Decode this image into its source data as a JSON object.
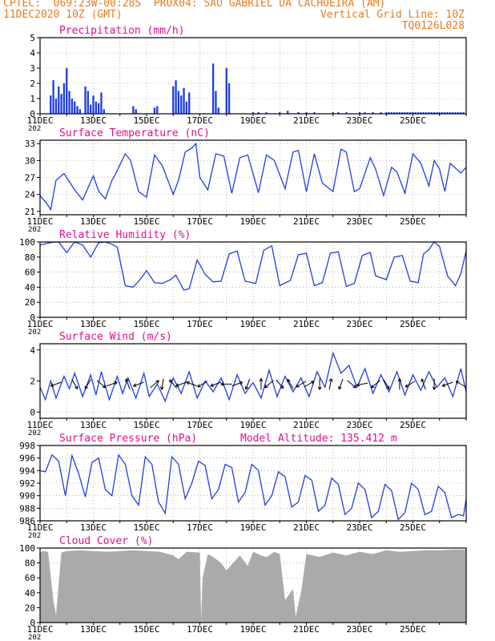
{
  "header": {
    "line1_left": "CPTEC:  069:23W-00:28S  PROX04: SAO GABRIEL DA CACHOEIRA (AM)",
    "line2_left": "11DEC2020 10Z (GMT)",
    "line2_right": "Vertical Grid Line: 10Z",
    "line3_right": "TQ0126L028"
  },
  "colors": {
    "header": "#e87a1e",
    "title": "#e0108c",
    "line": "#1f3fe0",
    "bars": "#1f3fe0",
    "cloud": "#aaaaaa"
  },
  "x_dates": [
    "11DEC",
    "13DEC",
    "15DEC",
    "17DEC",
    "19DEC",
    "21DEC",
    "23DEC",
    "25DEC"
  ],
  "x_cut_label": "202",
  "chart_data": [
    {
      "id": "precip",
      "type": "bar",
      "title": "Precipitation (mm/h)",
      "ylim": [
        0,
        5
      ],
      "yticks": [
        0,
        1,
        2,
        3,
        4,
        5
      ],
      "grid": true,
      "x_unit": "days since 11DEC2020 00Z",
      "x": [
        0.4,
        0.5,
        0.6,
        0.7,
        0.8,
        0.9,
        1.0,
        1.1,
        1.2,
        1.3,
        1.4,
        1.5,
        1.7,
        1.8,
        1.9,
        2.0,
        2.1,
        2.2,
        2.3,
        2.4,
        3.5,
        3.6,
        4.3,
        4.4,
        5.0,
        5.1,
        5.2,
        5.3,
        5.4,
        5.5,
        5.6,
        6.5,
        6.6,
        6.7,
        7.0,
        7.1,
        8.0,
        8.2,
        8.5,
        9.0,
        9.3,
        9.7,
        10.0,
        10.3,
        11.0,
        11.2,
        11.5,
        12.0,
        12.2,
        12.5,
        12.8,
        13.0,
        13.1,
        13.2,
        13.3,
        13.4,
        13.5,
        13.6,
        13.7,
        13.8,
        13.9,
        14.0,
        14.1,
        14.2,
        14.3,
        14.4,
        14.5,
        14.6,
        14.7,
        14.8,
        14.9,
        15.0,
        15.1,
        15.2,
        15.3,
        15.4,
        15.5,
        15.6,
        15.7,
        15.8,
        15.9
      ],
      "values": [
        1.2,
        2.2,
        1.0,
        1.8,
        1.3,
        2.0,
        3.0,
        1.5,
        1.0,
        0.8,
        0.5,
        0.3,
        1.8,
        1.5,
        0.6,
        1.2,
        0.8,
        0.7,
        1.4,
        0.3,
        0.5,
        0.3,
        0.4,
        0.5,
        1.8,
        2.2,
        1.5,
        1.2,
        1.7,
        0.8,
        1.4,
        3.3,
        1.5,
        0.4,
        3.0,
        2.0,
        0.1,
        0.1,
        0.1,
        0.1,
        0.2,
        0.1,
        0.1,
        0.1,
        0.1,
        0.1,
        0.1,
        0.1,
        0.1,
        0.1,
        0.1,
        0.1,
        0.1,
        0.1,
        0.1,
        0.1,
        0.1,
        0.1,
        0.1,
        0.1,
        0.1,
        0.1,
        0.1,
        0.1,
        0.1,
        0.1,
        0.1,
        0.1,
        0.1,
        0.1,
        0.1,
        0.1,
        0.1,
        0.1,
        0.1,
        0.1,
        0.1,
        0.1,
        0.1,
        0.1,
        0.1
      ]
    },
    {
      "id": "temp",
      "type": "line",
      "title": "Surface Temperature (nC)",
      "ylim": [
        20.4,
        33.6
      ],
      "yticks": [
        21,
        24,
        27,
        30,
        33
      ],
      "grid": true,
      "x_unit": "days since 11DEC2020 00Z",
      "x": [
        0.0,
        0.25,
        0.4,
        0.6,
        0.9,
        1.3,
        1.6,
        2.0,
        2.2,
        2.45,
        2.7,
        2.8,
        3.2,
        3.4,
        3.7,
        4.0,
        4.3,
        4.6,
        5.0,
        5.2,
        5.45,
        5.7,
        5.85,
        6.0,
        6.3,
        6.6,
        6.9,
        7.2,
        7.5,
        7.8,
        8.2,
        8.5,
        8.8,
        9.2,
        9.5,
        9.7,
        10.0,
        10.3,
        10.6,
        11.0,
        11.3,
        11.5,
        11.8,
        12.0,
        12.4,
        12.6,
        12.9,
        13.2,
        13.4,
        13.7,
        14.0,
        14.3,
        14.6,
        14.8,
        15.0,
        15.2,
        15.4,
        15.8,
        16.0
      ],
      "values": [
        23.8,
        22.4,
        21.3,
        26.5,
        27.7,
        24.8,
        23.0,
        27.3,
        24.6,
        23.2,
        26.5,
        27.3,
        31.2,
        30.0,
        24.5,
        23.5,
        31.0,
        29.0,
        24.0,
        26.5,
        31.5,
        32.2,
        33.0,
        27.0,
        24.8,
        31.2,
        30.8,
        24.2,
        30.5,
        31.0,
        24.3,
        31.0,
        30.0,
        25.0,
        31.5,
        31.8,
        24.5,
        31.2,
        26.0,
        24.5,
        32.0,
        31.5,
        24.5,
        25.0,
        30.5,
        28.5,
        23.8,
        28.8,
        28.0,
        24.2,
        31.2,
        29.5,
        25.5,
        30.0,
        28.5,
        24.5,
        29.5,
        27.8,
        28.8
      ]
    },
    {
      "id": "rh",
      "type": "line",
      "title": "Relative Humidity (%)",
      "ylim": [
        0,
        100
      ],
      "yticks": [
        0,
        20,
        40,
        60,
        80,
        100
      ],
      "grid": true,
      "x_unit": "days since 11DEC2020 00Z",
      "x": [
        0.0,
        0.25,
        0.5,
        0.7,
        1.0,
        1.3,
        1.6,
        1.9,
        2.2,
        2.45,
        2.7,
        2.9,
        3.2,
        3.5,
        3.8,
        4.0,
        4.3,
        4.6,
        4.9,
        5.1,
        5.4,
        5.6,
        5.9,
        6.2,
        6.5,
        6.8,
        7.1,
        7.4,
        7.7,
        8.1,
        8.4,
        8.7,
        9.0,
        9.4,
        9.7,
        10.0,
        10.3,
        10.6,
        10.9,
        11.2,
        11.5,
        11.8,
        12.1,
        12.4,
        12.6,
        13.0,
        13.3,
        13.6,
        13.9,
        14.2,
        14.4,
        14.6,
        14.8,
        15.0,
        15.3,
        15.6,
        15.8,
        16.0
      ],
      "values": [
        96,
        98,
        100,
        100,
        86,
        100,
        96,
        80,
        99,
        100,
        97,
        93,
        42,
        40,
        52,
        62,
        46,
        45,
        50,
        56,
        36,
        38,
        76,
        57,
        47,
        48,
        84,
        88,
        48,
        45,
        89,
        95,
        42,
        49,
        83,
        85,
        42,
        46,
        85,
        87,
        41,
        45,
        82,
        86,
        55,
        50,
        80,
        82,
        48,
        46,
        84,
        90,
        100,
        94,
        55,
        42,
        58,
        88
      ]
    },
    {
      "id": "wind",
      "type": "line",
      "title": "Surface Wind (m/s)",
      "ylim": [
        -0.4,
        4.4
      ],
      "yticks": [
        0,
        2,
        4
      ],
      "grid": true,
      "x_unit": "days since 11DEC2020 00Z",
      "x": [
        0.0,
        0.2,
        0.4,
        0.6,
        0.9,
        1.1,
        1.3,
        1.6,
        1.9,
        2.1,
        2.3,
        2.6,
        2.9,
        3.1,
        3.3,
        3.6,
        3.9,
        4.1,
        4.4,
        4.7,
        5.0,
        5.3,
        5.6,
        5.9,
        6.2,
        6.5,
        6.8,
        7.1,
        7.4,
        7.7,
        8.0,
        8.3,
        8.6,
        8.9,
        9.2,
        9.5,
        9.8,
        10.1,
        10.4,
        10.7,
        11.0,
        11.3,
        11.6,
        11.9,
        12.2,
        12.5,
        12.8,
        13.1,
        13.4,
        13.7,
        14.0,
        14.3,
        14.6,
        14.9,
        15.2,
        15.5,
        15.8,
        16.0
      ],
      "values": [
        1.6,
        0.8,
        2.0,
        0.9,
        2.3,
        1.5,
        2.5,
        1.0,
        2.4,
        1.1,
        2.6,
        0.8,
        2.3,
        1.2,
        2.2,
        0.9,
        2.5,
        1.0,
        1.8,
        0.7,
        2.2,
        1.2,
        2.6,
        0.9,
        2.0,
        1.3,
        2.2,
        0.8,
        2.4,
        1.2,
        1.9,
        0.9,
        2.7,
        1.0,
        2.3,
        1.3,
        2.2,
        1.0,
        2.6,
        1.6,
        3.8,
        2.5,
        3.0,
        1.6,
        2.8,
        1.2,
        2.4,
        1.3,
        2.6,
        1.1,
        2.4,
        1.4,
        2.6,
        1.6,
        2.2,
        1.0,
        2.8,
        1.3
      ],
      "arrows_at_x": [
        0.6,
        1.3,
        1.8,
        2.3,
        2.7,
        3.3,
        3.7,
        4.3,
        4.6,
        5.0,
        5.3,
        5.7,
        6.1,
        6.6,
        7.0,
        7.4,
        7.8,
        8.3,
        8.6,
        9.0,
        9.4,
        9.8,
        10.1,
        10.5,
        10.9,
        11.3,
        11.7,
        12.1,
        12.6,
        13.0,
        13.5,
        13.9,
        14.4,
        14.8,
        15.3,
        15.8
      ],
      "arrow_angles_deg": [
        200,
        300,
        240,
        320,
        20,
        110,
        200,
        40,
        260,
        130,
        200,
        160,
        210,
        200,
        180,
        20,
        250,
        90,
        220,
        310,
        120,
        210,
        30,
        270,
        80,
        250,
        320,
        190,
        220,
        300,
        90,
        210,
        110,
        270,
        200,
        150
      ]
    },
    {
      "id": "press",
      "type": "line",
      "title": "Surface Pressure (hPa)",
      "annotation": "Model Altitude: 135.412 m",
      "ylim": [
        986,
        998
      ],
      "yticks": [
        986,
        988,
        990,
        992,
        994,
        996,
        998
      ],
      "grid": true,
      "x_unit": "days since 11DEC2020 00Z",
      "x": [
        0.0,
        0.2,
        0.45,
        0.7,
        0.95,
        1.2,
        1.45,
        1.7,
        1.95,
        2.2,
        2.45,
        2.7,
        2.95,
        3.2,
        3.45,
        3.7,
        3.95,
        4.2,
        4.45,
        4.7,
        4.95,
        5.2,
        5.45,
        5.7,
        5.95,
        6.2,
        6.45,
        6.7,
        6.95,
        7.2,
        7.45,
        7.7,
        7.95,
        8.2,
        8.45,
        8.7,
        8.95,
        9.2,
        9.45,
        9.7,
        9.95,
        10.2,
        10.45,
        10.7,
        10.95,
        11.2,
        11.45,
        11.7,
        11.95,
        12.2,
        12.45,
        12.7,
        12.95,
        13.2,
        13.45,
        13.7,
        13.95,
        14.2,
        14.45,
        14.7,
        14.95,
        15.2,
        15.45,
        15.7,
        15.9,
        16.0
      ],
      "values": [
        994,
        993.8,
        996.5,
        995.5,
        990,
        996.4,
        993.5,
        989.8,
        995.3,
        996,
        991,
        990,
        996.5,
        995,
        990,
        988.5,
        996.2,
        995,
        989,
        987.2,
        996.2,
        995,
        989.5,
        992,
        995.5,
        994.8,
        989.5,
        991,
        995,
        994.5,
        989,
        990.5,
        995,
        994,
        988.5,
        990,
        993.8,
        993,
        988.2,
        989,
        993.2,
        992.5,
        987.5,
        988.5,
        992.8,
        991.8,
        987,
        988,
        992,
        991,
        986.5,
        987.5,
        991.8,
        990.8,
        986.2,
        987.3,
        992,
        991,
        987,
        987.5,
        991.5,
        990.5,
        986.5,
        987,
        986.8,
        989.5
      ]
    },
    {
      "id": "cloud",
      "type": "area",
      "title": "Cloud Cover (%)",
      "ylim": [
        0,
        100
      ],
      "yticks": [
        0,
        20,
        40,
        60,
        80,
        100
      ],
      "grid": true,
      "x_unit": "days since 11DEC2020 00Z",
      "x": [
        0.0,
        0.1,
        0.3,
        0.5,
        0.6,
        0.8,
        1.0,
        1.5,
        2.0,
        2.5,
        3.0,
        3.5,
        4.0,
        4.5,
        5.0,
        5.2,
        5.5,
        6.0,
        6.05,
        6.1,
        6.3,
        6.5,
        6.8,
        7.0,
        7.3,
        7.5,
        7.8,
        8.0,
        8.3,
        8.5,
        8.8,
        9.0,
        9.2,
        9.5,
        9.6,
        9.7,
        9.8,
        10.0,
        10.5,
        11.0,
        11.5,
        12.0,
        12.5,
        13.0,
        13.5,
        14.0,
        14.5,
        15.0,
        15.5,
        16.0
      ],
      "values": [
        94,
        96,
        95,
        30,
        10,
        94,
        96,
        97,
        96,
        95,
        96,
        97,
        96,
        95,
        90,
        85,
        95,
        94,
        3,
        60,
        92,
        88,
        80,
        70,
        82,
        90,
        76,
        95,
        90,
        88,
        95,
        92,
        30,
        45,
        8,
        25,
        40,
        92,
        88,
        94,
        90,
        95,
        92,
        97,
        95,
        96,
        97,
        97,
        98,
        98
      ]
    }
  ]
}
